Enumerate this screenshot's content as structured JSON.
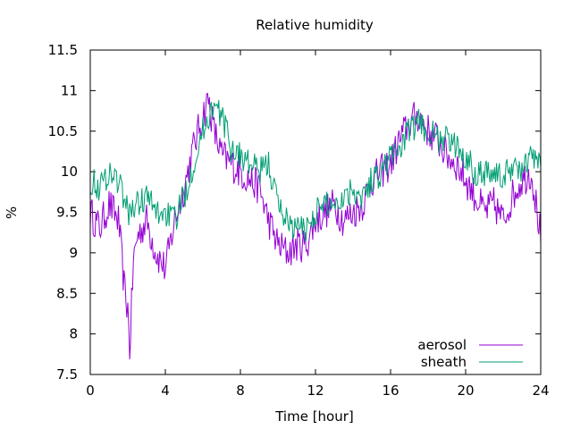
{
  "chart_data": {
    "type": "line",
    "title": "Relative humidity",
    "xlabel": "Time [hour]",
    "ylabel": "%",
    "xlim": [
      0,
      24
    ],
    "ylim": [
      7.5,
      11.5
    ],
    "xticks": [
      0,
      4,
      8,
      12,
      16,
      20,
      24
    ],
    "xtick_labels": [
      "0",
      "4",
      "8",
      "12",
      "16",
      "20",
      "24"
    ],
    "yticks": [
      7.5,
      8,
      8.5,
      9,
      9.5,
      10,
      10.5,
      11,
      11.5
    ],
    "ytick_labels": [
      "7.5",
      "8",
      "8.5",
      "9",
      "9.5",
      "10",
      "10.5",
      "11",
      "11.5"
    ],
    "grid": false,
    "legend_position": "bottom-right",
    "series": [
      {
        "name": "aerosol",
        "color": "#9400d3",
        "x": [
          0,
          0.5,
          1,
          1.5,
          1.8,
          2,
          2.1,
          2.3,
          2.5,
          3,
          3.5,
          4,
          4.5,
          5,
          5.5,
          6,
          6.3,
          6.6,
          7,
          7.5,
          8,
          8.5,
          9,
          9.5,
          10,
          10.5,
          11,
          11.5,
          12,
          12.5,
          13,
          13.5,
          14,
          14.5,
          15,
          15.5,
          16,
          16.5,
          17,
          17.5,
          18,
          18.5,
          19,
          19.5,
          20,
          20.5,
          21,
          21.5,
          22,
          22.5,
          23,
          23.5,
          24
        ],
        "values": [
          9.5,
          9.3,
          9.6,
          9.4,
          8.6,
          8.3,
          7.8,
          8.9,
          9.2,
          9.4,
          9.0,
          8.8,
          9.4,
          9.8,
          10.3,
          10.7,
          10.9,
          10.5,
          10.2,
          10.1,
          10.0,
          9.9,
          9.8,
          9.4,
          9.1,
          9.0,
          9.1,
          9.1,
          9.4,
          9.5,
          9.6,
          9.4,
          9.5,
          9.6,
          9.9,
          10.0,
          10.1,
          10.4,
          10.6,
          10.7,
          10.5,
          10.4,
          10.2,
          10.1,
          9.9,
          9.7,
          9.5,
          9.6,
          9.4,
          9.7,
          9.9,
          10.0,
          9.2
        ]
      },
      {
        "name": "sheath",
        "color": "#009e73",
        "x": [
          0,
          0.5,
          1,
          1.5,
          2,
          2.5,
          3,
          3.5,
          4,
          4.5,
          5,
          5.5,
          6,
          6.5,
          7,
          7.5,
          8,
          8.5,
          9,
          9.5,
          10,
          10.5,
          11,
          11.5,
          12,
          12.5,
          13,
          13.5,
          14,
          14.5,
          15,
          15.5,
          16,
          16.5,
          17,
          17.5,
          18,
          18.5,
          19,
          19.5,
          20,
          20.5,
          21,
          21.5,
          22,
          22.5,
          23,
          23.5,
          24
        ],
        "values": [
          9.9,
          9.8,
          10.0,
          9.9,
          9.5,
          9.6,
          9.7,
          9.5,
          9.5,
          9.4,
          9.7,
          10.1,
          10.5,
          10.8,
          10.7,
          10.3,
          10.2,
          10.1,
          10.0,
          10.1,
          9.6,
          9.4,
          9.3,
          9.3,
          9.5,
          9.6,
          9.6,
          9.7,
          9.8,
          9.7,
          9.9,
          10.0,
          10.2,
          10.3,
          10.5,
          10.6,
          10.5,
          10.4,
          10.4,
          10.3,
          10.2,
          10.0,
          10.0,
          10.0,
          9.9,
          10.1,
          10.0,
          10.2,
          10.1
        ]
      }
    ]
  }
}
